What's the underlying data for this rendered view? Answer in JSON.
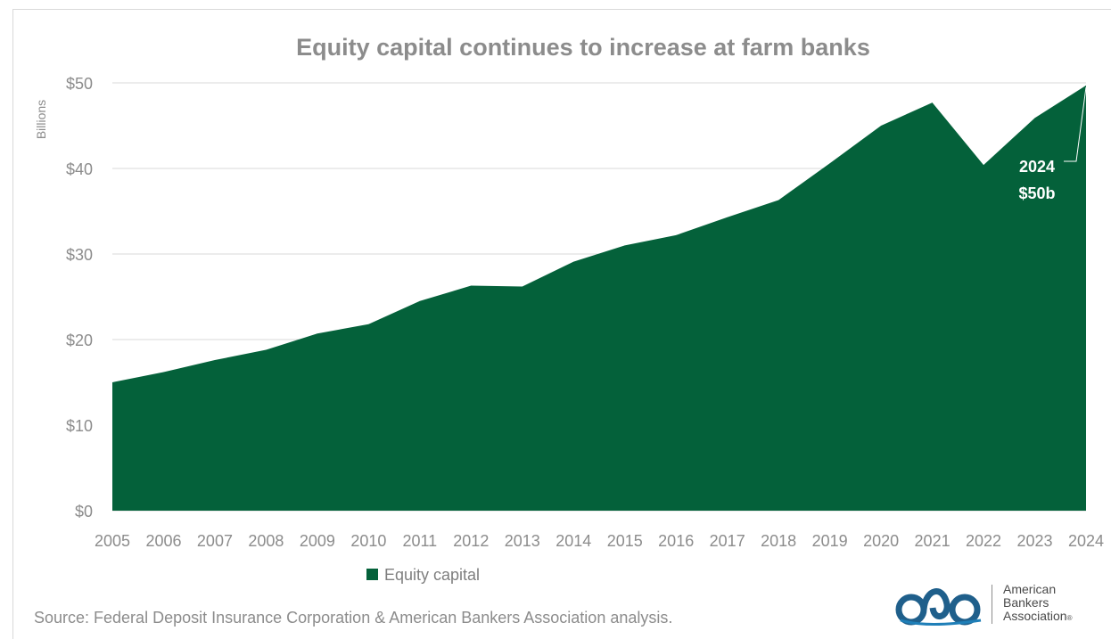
{
  "chart_data": {
    "type": "area",
    "title": "Equity capital continues to increase at farm banks",
    "ylabel": "Billions",
    "xlabel": "",
    "categories": [
      "2005",
      "2006",
      "2007",
      "2008",
      "2009",
      "2010",
      "2011",
      "2012",
      "2013",
      "2014",
      "2015",
      "2016",
      "2017",
      "2018",
      "2019",
      "2020",
      "2021",
      "2022",
      "2023",
      "2024"
    ],
    "series": [
      {
        "name": "Equity capital",
        "values": [
          15.0,
          16.2,
          17.6,
          18.8,
          20.7,
          21.8,
          24.5,
          26.3,
          26.2,
          29.1,
          31.0,
          32.2,
          34.3,
          36.3,
          40.6,
          45.0,
          47.7,
          40.4,
          45.9,
          49.7
        ]
      }
    ],
    "ylim": [
      0,
      50
    ],
    "yticks": [
      0,
      10,
      20,
      30,
      40,
      50
    ],
    "ytick_labels": [
      "$0",
      "$10",
      "$20",
      "$30",
      "$40",
      "$50"
    ],
    "grid": true,
    "legend": "bottom-left",
    "colors": {
      "area": "#04613a",
      "grid": "#d9d9d9",
      "text": "#8c8c8c"
    },
    "annotation": {
      "year": "2024",
      "value": "$50b"
    }
  },
  "source": "Source: Federal Deposit Insurance Corporation & American Bankers Association analysis.",
  "logo": {
    "line1": "American",
    "line2": "Bankers",
    "line3": "Association",
    "mark": "®"
  }
}
